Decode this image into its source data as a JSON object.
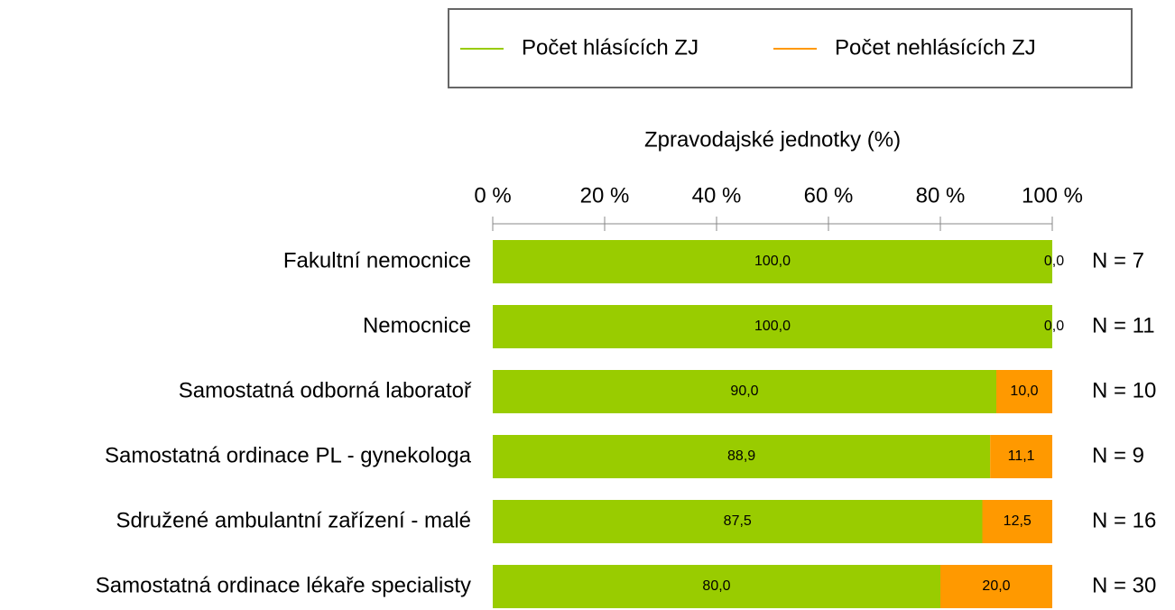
{
  "chart_data": {
    "type": "stacked-bar-horizontal",
    "x_label": "Zpravodajské jednotky (%)",
    "categories": [
      "Fakultní nemocnice",
      "Nemocnice",
      "Samostatná odborná laboratoř",
      "Samostatná ordinace PL - gynekologa",
      "Sdružené ambulantní zařízení - malé",
      "Samostatná ordinace lékaře specialisty"
    ],
    "series": [
      {
        "name": "Počet hlásících ZJ",
        "color": "#99cc00",
        "values": [
          100,
          100,
          90,
          88.9,
          87.5,
          80
        ],
        "value_labels": [
          "100,0",
          "100,0",
          "90,0",
          "88,9",
          "87,5",
          "80,0"
        ]
      },
      {
        "name": "Počet nehlásících ZJ",
        "color": "#ff9900",
        "values": [
          0,
          0,
          10,
          11.1,
          12.5,
          20
        ],
        "value_labels": [
          "0,0",
          "0,0",
          "10,0",
          "11,1",
          "12,5",
          "20,0"
        ]
      }
    ],
    "annotations": [
      "N = 7",
      "N = 11",
      "N = 10",
      "N = 9",
      "N = 16",
      "N = 30"
    ],
    "xlim": [
      0,
      100
    ],
    "xticks": [
      {
        "value": 0,
        "label": "0 %"
      },
      {
        "value": 20,
        "label": "20 %"
      },
      {
        "value": 40,
        "label": "40 %"
      },
      {
        "value": 60,
        "label": "60 %"
      },
      {
        "value": 80,
        "label": "80 %"
      },
      {
        "value": 100,
        "label": "100 %"
      }
    ]
  }
}
